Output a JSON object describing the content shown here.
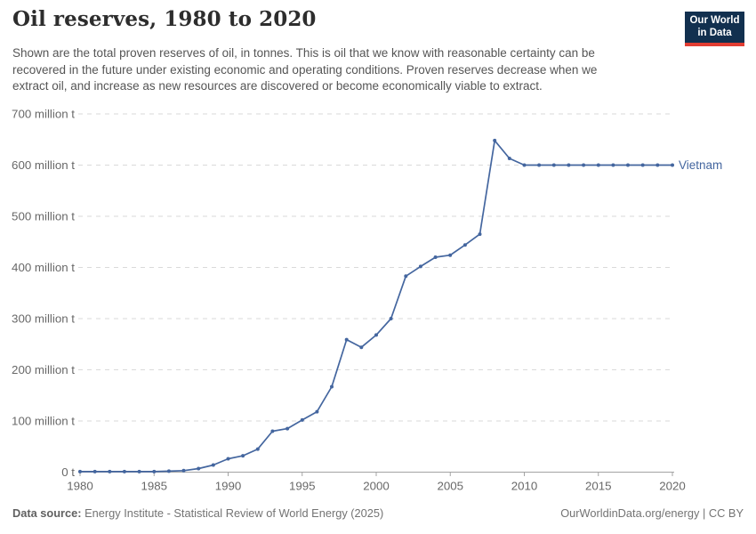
{
  "header": {
    "title": "Oil reserves, 1980 to 2020",
    "subtitle_lines": [
      "Shown are the total proven reserves of oil, in tonnes. This is oil that we know with reasonable certainty can be",
      "recovered in the future under existing economic and operating conditions. Proven reserves decrease when we",
      "extract oil, and increase as new resources are discovered or become economically viable to extract."
    ],
    "logo": {
      "line1": "Our World",
      "line2": "in Data",
      "bg_color": "#12304f",
      "stripe_color": "#e23d32"
    }
  },
  "chart_data": {
    "type": "line",
    "title": "Oil reserves, 1980 to 2020",
    "unit": "million tonnes",
    "xlim": [
      1980,
      2020
    ],
    "ylim": [
      0,
      700
    ],
    "grid": "horizontal-dashed",
    "legend": "series-end-label",
    "x": [
      1980,
      1981,
      1982,
      1983,
      1984,
      1985,
      1986,
      1987,
      1988,
      1989,
      1990,
      1991,
      1992,
      1993,
      1994,
      1995,
      1996,
      1997,
      1998,
      1999,
      2000,
      2001,
      2002,
      2003,
      2004,
      2005,
      2006,
      2007,
      2008,
      2009,
      2010,
      2011,
      2012,
      2013,
      2014,
      2015,
      2016,
      2017,
      2018,
      2019,
      2020
    ],
    "series": [
      {
        "name": "Vietnam",
        "color": "#44669f",
        "values": [
          1,
          1,
          1,
          1,
          1,
          1,
          2,
          3,
          7,
          14,
          26,
          32,
          45,
          80,
          85,
          102,
          118,
          167,
          259,
          244,
          268,
          300,
          383,
          402,
          420,
          424,
          444,
          465,
          648,
          613,
          600,
          600,
          600,
          600,
          600,
          600,
          600,
          600,
          600,
          600,
          600
        ]
      }
    ],
    "xticks": [
      1980,
      1985,
      1990,
      1995,
      2000,
      2005,
      2010,
      2015,
      2020
    ],
    "yticks": [
      {
        "value": 0,
        "label": "0 t"
      },
      {
        "value": 100,
        "label": "100 million t"
      },
      {
        "value": 200,
        "label": "200 million t"
      },
      {
        "value": 300,
        "label": "300 million t"
      },
      {
        "value": 400,
        "label": "400 million t"
      },
      {
        "value": 500,
        "label": "500 million t"
      },
      {
        "value": 600,
        "label": "600 million t"
      },
      {
        "value": 700,
        "label": "700 million t"
      }
    ]
  },
  "footer": {
    "source_label": "Data source:",
    "source_text": "Energy Institute - Statistical Review of World Energy (2025)",
    "link_text": "OurWorldinData.org/energy | CC BY"
  }
}
